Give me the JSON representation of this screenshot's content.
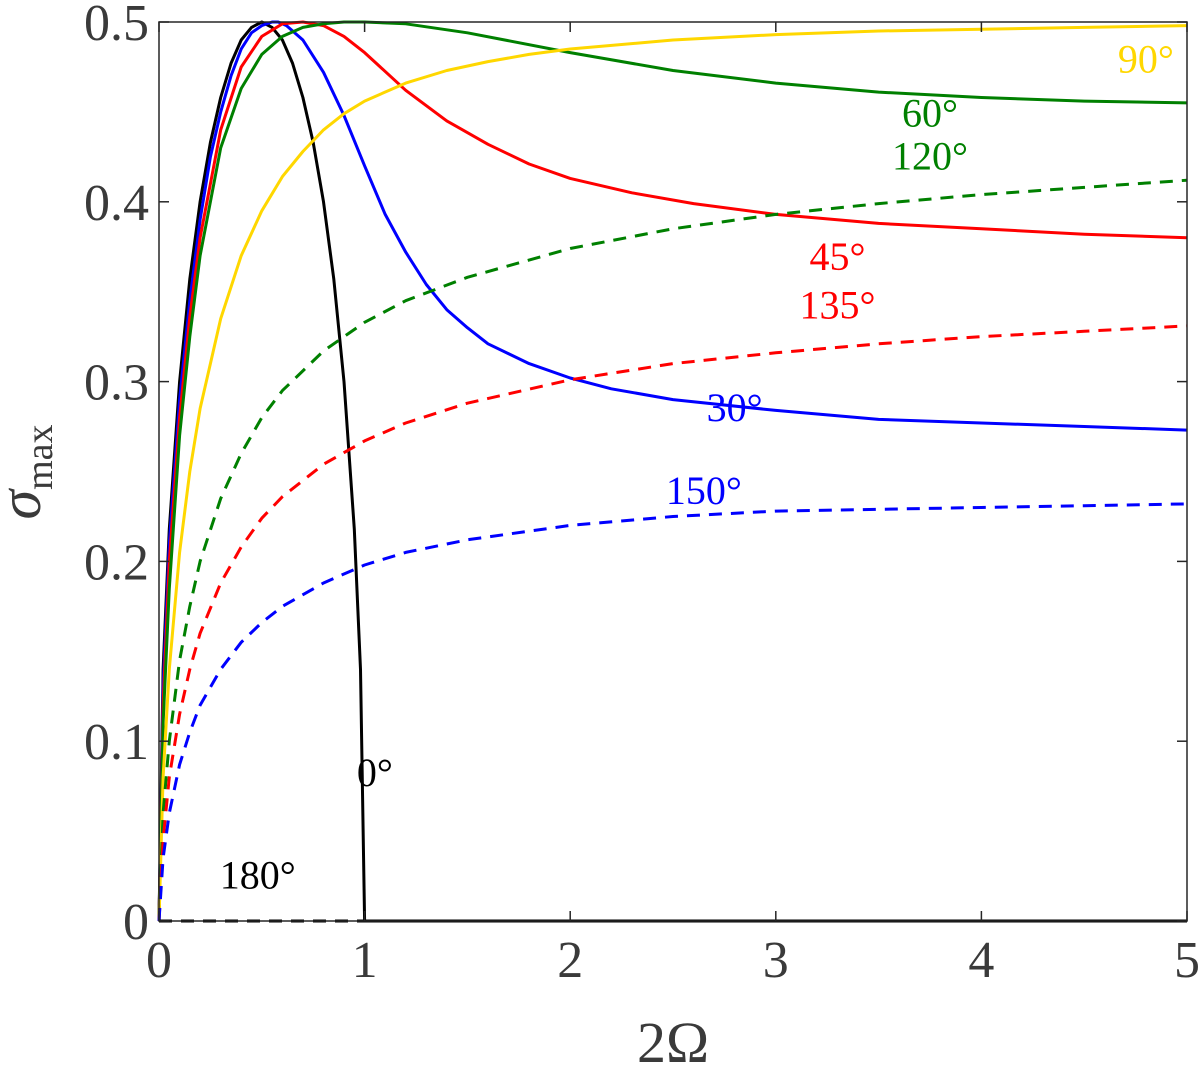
{
  "chart_data": {
    "type": "line",
    "title": "",
    "xlabel": "2Ω",
    "ylabel": {
      "symbol": "σ",
      "subscript": "max"
    },
    "xlim": [
      0,
      5
    ],
    "ylim": [
      0,
      0.5
    ],
    "xticks": [
      "0",
      "1",
      "2",
      "3",
      "4",
      "5"
    ],
    "xtick_values": [
      0,
      1,
      2,
      3,
      4,
      5
    ],
    "yticks": [
      "0",
      "0.1",
      "0.2",
      "0.3",
      "0.4",
      "0.5"
    ],
    "ytick_values": [
      0,
      0.1,
      0.2,
      0.3,
      0.4,
      0.5
    ],
    "grid": false,
    "series": [
      {
        "name": "0°",
        "label": "0°",
        "color": "#000000",
        "dash": false,
        "x": [
          0,
          0.02,
          0.05,
          0.1,
          0.15,
          0.2,
          0.25,
          0.3,
          0.35,
          0.4,
          0.45,
          0.5,
          0.55,
          0.6,
          0.65,
          0.7,
          0.75,
          0.8,
          0.85,
          0.9,
          0.95,
          0.98,
          1.0,
          1.5,
          2,
          3,
          4,
          5
        ],
        "y": [
          0,
          0.14,
          0.218,
          0.3,
          0.357,
          0.4,
          0.433,
          0.458,
          0.477,
          0.49,
          0.497,
          0.5,
          0.497,
          0.49,
          0.477,
          0.458,
          0.433,
          0.4,
          0.357,
          0.3,
          0.218,
          0.14,
          0,
          0,
          0,
          0,
          0,
          0
        ],
        "label_at": [
          1.05,
          0.075
        ]
      },
      {
        "name": "30°",
        "label": "30°",
        "color": "#0000ff",
        "dash": false,
        "x": [
          0,
          0.02,
          0.05,
          0.1,
          0.15,
          0.2,
          0.25,
          0.3,
          0.35,
          0.4,
          0.45,
          0.5,
          0.55,
          0.58,
          0.62,
          0.7,
          0.8,
          0.9,
          1.0,
          1.1,
          1.2,
          1.3,
          1.4,
          1.5,
          1.6,
          1.8,
          2.0,
          2.2,
          2.5,
          3.0,
          3.5,
          4.0,
          4.5,
          5.0
        ],
        "y": [
          0,
          0.13,
          0.21,
          0.29,
          0.345,
          0.39,
          0.425,
          0.45,
          0.47,
          0.485,
          0.494,
          0.498,
          0.5,
          0.5,
          0.498,
          0.49,
          0.472,
          0.448,
          0.42,
          0.393,
          0.372,
          0.354,
          0.34,
          0.33,
          0.321,
          0.31,
          0.302,
          0.296,
          0.29,
          0.284,
          0.279,
          0.277,
          0.275,
          0.273
        ],
        "label_at": [
          2.8,
          0.278
        ]
      },
      {
        "name": "45°",
        "label": "45°",
        "color": "#ff0000",
        "dash": false,
        "x": [
          0,
          0.02,
          0.05,
          0.1,
          0.15,
          0.2,
          0.3,
          0.4,
          0.5,
          0.6,
          0.7,
          0.8,
          0.9,
          1.0,
          1.2,
          1.4,
          1.6,
          1.8,
          2.0,
          2.3,
          2.6,
          3.0,
          3.5,
          4.0,
          4.5,
          5.0
        ],
        "y": [
          0,
          0.12,
          0.2,
          0.28,
          0.336,
          0.38,
          0.44,
          0.475,
          0.492,
          0.499,
          0.5,
          0.498,
          0.492,
          0.483,
          0.462,
          0.445,
          0.432,
          0.421,
          0.413,
          0.405,
          0.399,
          0.393,
          0.388,
          0.385,
          0.382,
          0.38
        ],
        "label_at": [
          3.3,
          0.362
        ]
      },
      {
        "name": "60°",
        "label": "60°",
        "color": "#008000",
        "dash": false,
        "x": [
          0,
          0.02,
          0.05,
          0.1,
          0.15,
          0.2,
          0.3,
          0.4,
          0.5,
          0.6,
          0.7,
          0.8,
          0.9,
          1.0,
          1.2,
          1.5,
          2.0,
          2.5,
          3.0,
          3.5,
          4.0,
          4.5,
          5.0
        ],
        "y": [
          0,
          0.11,
          0.185,
          0.27,
          0.325,
          0.37,
          0.43,
          0.463,
          0.482,
          0.492,
          0.497,
          0.499,
          0.5,
          0.5,
          0.499,
          0.494,
          0.483,
          0.473,
          0.466,
          0.461,
          0.458,
          0.456,
          0.455
        ],
        "label_at": [
          3.75,
          0.442
        ]
      },
      {
        "name": "90°",
        "label": "90°",
        "color": "#ffd700",
        "dash": false,
        "x": [
          0,
          0.02,
          0.05,
          0.1,
          0.15,
          0.2,
          0.3,
          0.4,
          0.5,
          0.6,
          0.7,
          0.8,
          0.9,
          1.0,
          1.2,
          1.4,
          1.6,
          1.8,
          2.0,
          2.5,
          3.0,
          3.5,
          4.0,
          4.5,
          5.0
        ],
        "y": [
          0,
          0.08,
          0.14,
          0.205,
          0.25,
          0.285,
          0.335,
          0.37,
          0.395,
          0.414,
          0.428,
          0.44,
          0.449,
          0.456,
          0.466,
          0.473,
          0.478,
          0.482,
          0.485,
          0.49,
          0.493,
          0.495,
          0.496,
          0.497,
          0.498
        ],
        "label_at": [
          4.8,
          0.472
        ]
      },
      {
        "name": "120°",
        "label": "120°",
        "color": "#008000",
        "dash": true,
        "x": [
          0,
          0.02,
          0.05,
          0.1,
          0.15,
          0.2,
          0.3,
          0.4,
          0.5,
          0.6,
          0.8,
          1.0,
          1.2,
          1.5,
          2.0,
          2.5,
          3.0,
          3.5,
          4.0,
          4.5,
          5.0
        ],
        "y": [
          0,
          0.06,
          0.1,
          0.145,
          0.175,
          0.2,
          0.235,
          0.26,
          0.28,
          0.295,
          0.317,
          0.333,
          0.345,
          0.358,
          0.374,
          0.385,
          0.393,
          0.399,
          0.404,
          0.408,
          0.412
        ],
        "label_at": [
          3.75,
          0.418
        ]
      },
      {
        "name": "135°",
        "label": "135°",
        "color": "#ff0000",
        "dash": true,
        "x": [
          0,
          0.02,
          0.05,
          0.1,
          0.15,
          0.2,
          0.3,
          0.4,
          0.5,
          0.6,
          0.8,
          1.0,
          1.2,
          1.5,
          2.0,
          2.5,
          3.0,
          3.5,
          4.0,
          4.5,
          5.0
        ],
        "y": [
          0,
          0.045,
          0.08,
          0.115,
          0.14,
          0.16,
          0.188,
          0.208,
          0.224,
          0.236,
          0.254,
          0.267,
          0.277,
          0.288,
          0.301,
          0.31,
          0.316,
          0.321,
          0.325,
          0.328,
          0.331
        ],
        "label_at": [
          3.3,
          0.335
        ]
      },
      {
        "name": "150°",
        "label": "150°",
        "color": "#0000ff",
        "dash": true,
        "x": [
          0,
          0.02,
          0.05,
          0.1,
          0.15,
          0.2,
          0.3,
          0.4,
          0.5,
          0.6,
          0.8,
          1.0,
          1.2,
          1.5,
          2.0,
          2.5,
          3.0,
          3.5,
          4.0,
          4.5,
          5.0
        ],
        "y": [
          0,
          0.035,
          0.06,
          0.087,
          0.105,
          0.12,
          0.14,
          0.155,
          0.166,
          0.175,
          0.188,
          0.198,
          0.205,
          0.212,
          0.22,
          0.225,
          0.228,
          0.229,
          0.23,
          0.231,
          0.232
        ],
        "label_at": [
          2.65,
          0.232
        ]
      },
      {
        "name": "180°",
        "label": "180°",
        "color": "#000000",
        "dash": true,
        "x": [
          0,
          1
        ],
        "y": [
          0,
          0
        ],
        "label_at": [
          0.48,
          0.018
        ]
      }
    ]
  }
}
